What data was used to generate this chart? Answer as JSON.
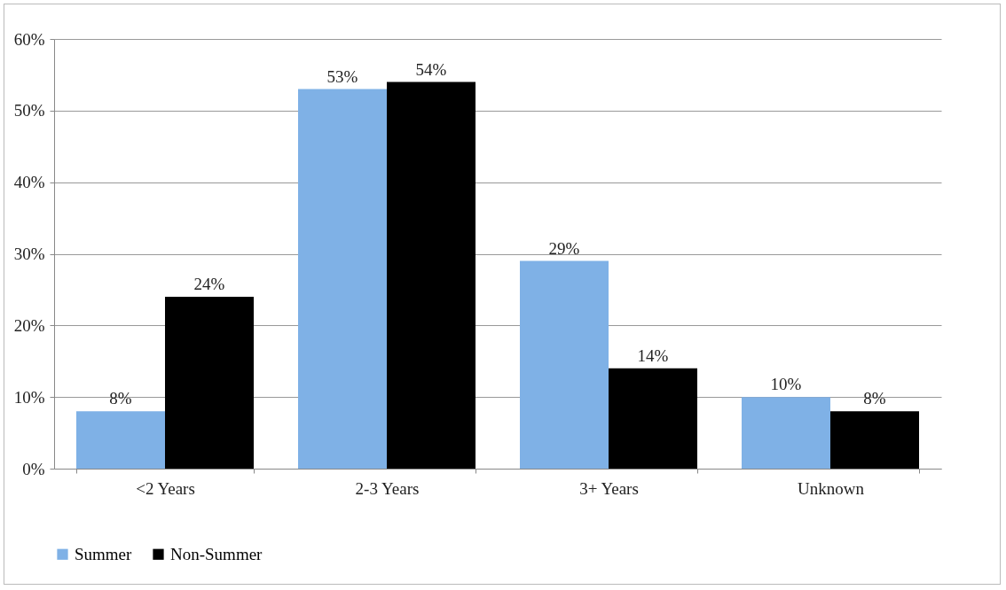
{
  "chart_data": {
    "type": "bar",
    "categories": [
      "<2 Years",
      "2-3 Years",
      "3+ Years",
      "Unknown"
    ],
    "series": [
      {
        "name": "Summer",
        "color": "#7fb1e6",
        "values": [
          8,
          53,
          29,
          10
        ],
        "value_labels": [
          "8%",
          "53%",
          "29%",
          "10%"
        ]
      },
      {
        "name": "Non-Summer",
        "color": "#000000",
        "values": [
          24,
          54,
          14,
          8
        ],
        "value_labels": [
          "24%",
          "54%",
          "14%",
          "8%"
        ]
      }
    ],
    "ylim": [
      0,
      60
    ],
    "yticks": [
      {
        "value": 0,
        "label": "0%"
      },
      {
        "value": 10,
        "label": "10%"
      },
      {
        "value": 20,
        "label": "20%"
      },
      {
        "value": 30,
        "label": "30%"
      },
      {
        "value": 40,
        "label": "40%"
      },
      {
        "value": 50,
        "label": "50%"
      },
      {
        "value": 60,
        "label": "60%"
      }
    ],
    "grid": "y",
    "legend": "bottom"
  }
}
